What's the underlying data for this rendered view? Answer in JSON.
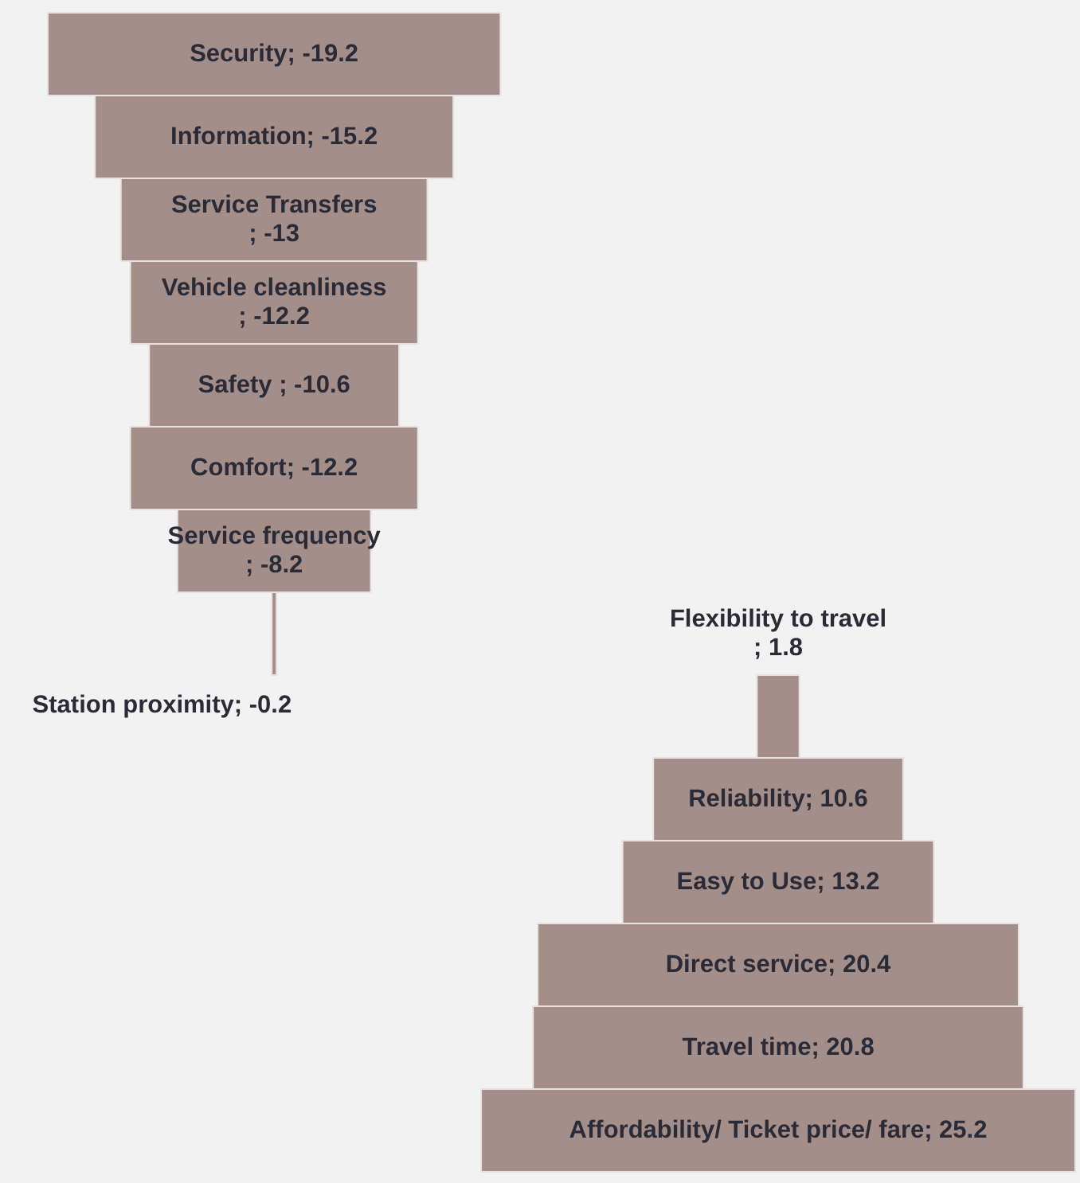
{
  "chart_data": {
    "type": "other",
    "categories": [
      "Security",
      "Information",
      "Service Transfers",
      "Vehicle cleanliness",
      "Safety ",
      "Comfort",
      "Service frequency",
      "Station proximity",
      "Flexibility to travel",
      "Reliability",
      "Easy to Use",
      "Direct service",
      "Travel time",
      "Affordability/ Ticket price/ fare"
    ],
    "values": [
      -19.2,
      -15.2,
      -13,
      -12.2,
      -10.6,
      -12.2,
      -8.2,
      -0.2,
      1.8,
      10.6,
      13.2,
      20.4,
      20.8,
      25.2
    ],
    "value_labels": [
      "; -19.2",
      "; -15.2",
      "; -13",
      "; -12.2",
      "; -10.6",
      "; -12.2",
      "; -8.2",
      "; -0.2",
      "; 1.8",
      "; 10.6",
      "; 13.2",
      "; 20.4",
      "; 20.8",
      "; 25.2"
    ],
    "color": "#a48e8a"
  }
}
